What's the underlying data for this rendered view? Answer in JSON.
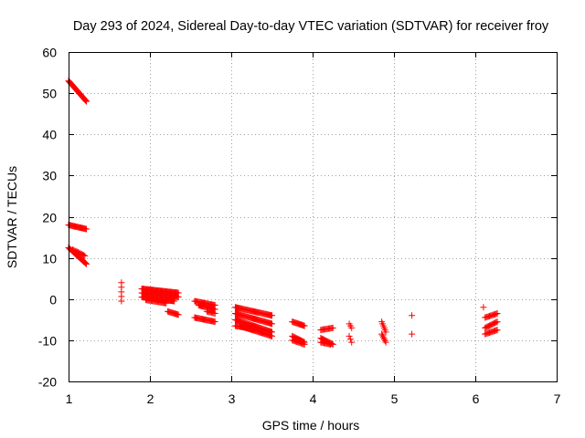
{
  "chart_data": {
    "type": "scatter",
    "title": "Day 293 of 2024, Sidereal Day-to-day VTEC variation (SDTVAR) for receiver froy",
    "xlabel": "GPS time / hours",
    "ylabel": "SDTVAR / TECUs",
    "xlim": [
      1,
      7
    ],
    "ylim": [
      -20,
      60
    ],
    "xticks": [
      1,
      2,
      3,
      4,
      5,
      6,
      7
    ],
    "yticks": [
      -20,
      -10,
      0,
      10,
      20,
      30,
      40,
      50,
      60
    ],
    "grid": true,
    "marker": "+",
    "color": "#ff0000",
    "series": [
      {
        "name": "SDTVAR",
        "segments": [
          {
            "x0": 1.0,
            "y0": 53.0,
            "x1": 1.22,
            "y1": 48.0,
            "n": 30
          },
          {
            "x0": 1.0,
            "y0": 18.0,
            "x1": 1.22,
            "y1": 17.0,
            "n": 22
          },
          {
            "x0": 1.0,
            "y0": 12.5,
            "x1": 1.22,
            "y1": 8.5,
            "n": 22
          },
          {
            "x0": 1.05,
            "y0": 12.0,
            "x1": 1.2,
            "y1": 10.5,
            "n": 12
          },
          {
            "x0": 1.65,
            "y0": 4.0,
            "x1": 1.65,
            "y1": -0.5,
            "n": 5
          },
          {
            "x0": 1.9,
            "y0": 2.5,
            "x1": 2.35,
            "y1": 1.5,
            "n": 45
          },
          {
            "x0": 1.9,
            "y0": 1.5,
            "x1": 2.35,
            "y1": 0.5,
            "n": 45
          },
          {
            "x0": 1.9,
            "y0": 0.5,
            "x1": 2.3,
            "y1": -0.5,
            "n": 40
          },
          {
            "x0": 1.95,
            "y0": -0.2,
            "x1": 2.2,
            "y1": -1.0,
            "n": 20
          },
          {
            "x0": 2.22,
            "y0": -3.0,
            "x1": 2.35,
            "y1": -3.8,
            "n": 12
          },
          {
            "x0": 2.55,
            "y0": -0.5,
            "x1": 2.8,
            "y1": -1.5,
            "n": 22
          },
          {
            "x0": 2.6,
            "y0": -1.5,
            "x1": 2.8,
            "y1": -2.5,
            "n": 18
          },
          {
            "x0": 2.7,
            "y0": -3.0,
            "x1": 2.8,
            "y1": -3.5,
            "n": 8
          },
          {
            "x0": 2.55,
            "y0": -4.5,
            "x1": 2.8,
            "y1": -5.5,
            "n": 22
          },
          {
            "x0": 3.05,
            "y0": -2.0,
            "x1": 3.5,
            "y1": -4.0,
            "n": 40
          },
          {
            "x0": 3.05,
            "y0": -3.5,
            "x1": 3.5,
            "y1": -6.0,
            "n": 40
          },
          {
            "x0": 3.05,
            "y0": -5.0,
            "x1": 3.5,
            "y1": -8.0,
            "n": 40
          },
          {
            "x0": 3.1,
            "y0": -6.5,
            "x1": 3.5,
            "y1": -9.0,
            "n": 35
          },
          {
            "x0": 3.05,
            "y0": -6.5,
            "x1": 3.35,
            "y1": -7.5,
            "n": 25
          },
          {
            "x0": 3.75,
            "y0": -5.5,
            "x1": 3.9,
            "y1": -6.5,
            "n": 14
          },
          {
            "x0": 3.75,
            "y0": -9.0,
            "x1": 3.9,
            "y1": -10.5,
            "n": 14
          },
          {
            "x0": 3.75,
            "y0": -10.0,
            "x1": 3.9,
            "y1": -11.0,
            "n": 12
          },
          {
            "x0": 4.1,
            "y0": -7.5,
            "x1": 4.25,
            "y1": -7.0,
            "n": 12
          },
          {
            "x0": 4.1,
            "y0": -9.5,
            "x1": 4.25,
            "y1": -11.0,
            "n": 14
          },
          {
            "x0": 4.1,
            "y0": -10.5,
            "x1": 4.22,
            "y1": -11.0,
            "n": 10
          },
          {
            "x0": 4.45,
            "y0": -6.0,
            "x1": 4.48,
            "y1": -7.0,
            "n": 3
          },
          {
            "x0": 4.45,
            "y0": -9.0,
            "x1": 4.48,
            "y1": -10.5,
            "n": 3
          },
          {
            "x0": 4.85,
            "y0": -5.5,
            "x1": 4.9,
            "y1": -8.0,
            "n": 6
          },
          {
            "x0": 4.85,
            "y0": -8.5,
            "x1": 4.9,
            "y1": -10.5,
            "n": 6
          },
          {
            "x0": 5.22,
            "y0": -4.0,
            "x1": 5.22,
            "y1": -4.0,
            "n": 1
          },
          {
            "x0": 5.22,
            "y0": -8.5,
            "x1": 5.22,
            "y1": -8.5,
            "n": 1
          },
          {
            "x0": 6.1,
            "y0": -2.0,
            "x1": 6.1,
            "y1": -2.0,
            "n": 1
          },
          {
            "x0": 6.12,
            "y0": -4.5,
            "x1": 6.27,
            "y1": -3.5,
            "n": 12
          },
          {
            "x0": 6.12,
            "y0": -7.0,
            "x1": 6.27,
            "y1": -5.5,
            "n": 12
          },
          {
            "x0": 6.12,
            "y0": -8.5,
            "x1": 6.27,
            "y1": -7.5,
            "n": 12
          }
        ]
      }
    ]
  }
}
